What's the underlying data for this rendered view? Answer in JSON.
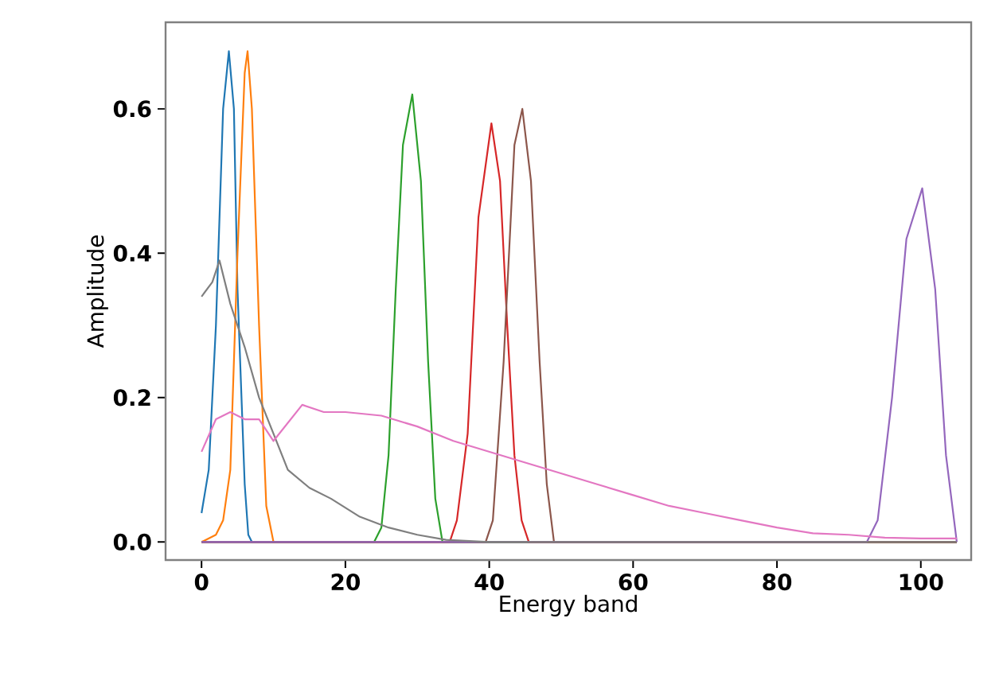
{
  "chart_data": {
    "type": "line",
    "xlabel": "Energy band",
    "ylabel": "Amplitude",
    "xlim": [
      -5,
      107
    ],
    "ylim": [
      -0.025,
      0.72
    ],
    "xticks": [
      0,
      20,
      40,
      60,
      80,
      100
    ],
    "yticks": [
      {
        "value": 0,
        "label": "0.0"
      },
      {
        "value": 0.2,
        "label": "0.2"
      },
      {
        "value": 0.4,
        "label": "0.4"
      },
      {
        "value": 0.6,
        "label": "0.6"
      }
    ],
    "grid": false,
    "marker": "none",
    "line_style": "solid",
    "series": [
      {
        "color": "#1f77b4",
        "x": [
          0,
          1,
          2,
          3,
          3.8,
          4.5,
          5,
          6,
          6.5,
          7,
          105
        ],
        "values": [
          0.04,
          0.1,
          0.3,
          0.6,
          0.68,
          0.6,
          0.35,
          0.08,
          0.01,
          0,
          0
        ]
      },
      {
        "color": "#ff7f0e",
        "x": [
          0,
          2,
          3,
          4,
          5,
          6,
          6.4,
          7,
          8,
          9,
          10,
          105
        ],
        "values": [
          0,
          0.01,
          0.03,
          0.1,
          0.4,
          0.65,
          0.68,
          0.6,
          0.3,
          0.05,
          0,
          0
        ]
      },
      {
        "color": "#2ca02c",
        "x": [
          0,
          24,
          25,
          26,
          27,
          28,
          29.3,
          30.5,
          31.5,
          32.5,
          33.5,
          105
        ],
        "values": [
          0,
          0,
          0.02,
          0.12,
          0.35,
          0.55,
          0.62,
          0.5,
          0.25,
          0.06,
          0,
          0
        ]
      },
      {
        "color": "#d62728",
        "x": [
          0,
          34.5,
          35.5,
          37,
          38.5,
          40.3,
          41.5,
          42.5,
          43.5,
          44.5,
          45.5,
          105
        ],
        "values": [
          0,
          0,
          0.03,
          0.15,
          0.45,
          0.58,
          0.5,
          0.3,
          0.12,
          0.03,
          0,
          0
        ]
      },
      {
        "color": "#8c564b",
        "x": [
          0,
          39.5,
          40.5,
          42,
          43.5,
          44.6,
          45.8,
          47,
          48,
          49,
          105
        ],
        "values": [
          0,
          0,
          0.03,
          0.25,
          0.55,
          0.6,
          0.5,
          0.25,
          0.08,
          0,
          0
        ]
      },
      {
        "color": "#9467bd",
        "x": [
          0,
          92.5,
          94,
          96,
          98,
          100.2,
          102,
          103.5,
          105
        ],
        "values": [
          0,
          0,
          0.03,
          0.2,
          0.42,
          0.49,
          0.35,
          0.12,
          0
        ]
      },
      {
        "color": "#7f7f7f",
        "x": [
          0,
          1.5,
          2.5,
          4,
          6,
          8,
          10,
          12,
          15,
          18,
          22,
          26,
          30,
          34,
          40,
          105
        ],
        "values": [
          0.34,
          0.36,
          0.39,
          0.33,
          0.27,
          0.2,
          0.15,
          0.1,
          0.075,
          0.06,
          0.035,
          0.02,
          0.01,
          0.003,
          0,
          0
        ]
      },
      {
        "color": "#e377c2",
        "x": [
          0,
          2,
          4,
          6,
          8,
          10,
          12,
          14,
          17,
          20,
          25,
          30,
          35,
          40,
          45,
          50,
          55,
          60,
          65,
          70,
          75,
          80,
          85,
          90,
          95,
          100,
          105
        ],
        "values": [
          0.125,
          0.17,
          0.18,
          0.17,
          0.17,
          0.14,
          0.165,
          0.19,
          0.18,
          0.18,
          0.175,
          0.16,
          0.14,
          0.125,
          0.11,
          0.095,
          0.08,
          0.065,
          0.05,
          0.04,
          0.03,
          0.02,
          0.012,
          0.01,
          0.006,
          0.005,
          0.005
        ]
      }
    ]
  }
}
